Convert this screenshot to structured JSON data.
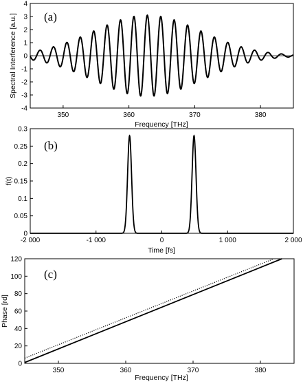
{
  "chart_data": [
    {
      "panel_label": "(a)",
      "type": "line",
      "xlabel": "Frequency [THz]",
      "ylabel": "Spectral Interference [a.u.]",
      "xlim": [
        345,
        385
      ],
      "ylim": [
        -4,
        4
      ],
      "x_ticks": [
        "350",
        "360",
        "370",
        "380"
      ],
      "y_ticks": [
        "-4",
        "-3",
        "-2",
        "-1",
        "0",
        "1",
        "2",
        "3",
        "4"
      ],
      "grid": false,
      "series": [
        {
          "description": "spectral interference fringes",
          "envelope_center": 362.8,
          "envelope_amplitude": 3.1,
          "envelope_sigma": 8.2,
          "fringe_period": 2.04,
          "x_range": [
            345,
            385
          ]
        }
      ]
    },
    {
      "panel_label": "(b)",
      "type": "line",
      "xlabel": "Time [fs]",
      "ylabel": "f(t)",
      "xlim": [
        -2000,
        2000
      ],
      "ylim": [
        0,
        0.3
      ],
      "x_ticks": [
        "-2 000",
        "-1 000",
        "0",
        "1 000",
        "2 000"
      ],
      "y_ticks": [
        "0",
        "0.05",
        "0.1",
        "0.15",
        "0.2",
        "0.25",
        "0.3"
      ],
      "grid": false,
      "series": [
        {
          "description": "two symmetric pulses",
          "peaks": [
            {
              "x": -490,
              "y": 0.28
            },
            {
              "x": 490,
              "y": 0.28
            }
          ],
          "peak_width": 30
        }
      ]
    },
    {
      "panel_label": "(c)",
      "type": "line",
      "xlabel": "Frequency [THz]",
      "ylabel": "Phase [rd]",
      "xlim": [
        345,
        385
      ],
      "ylim": [
        0,
        120
      ],
      "x_ticks": [
        "350",
        "360",
        "370",
        "380"
      ],
      "y_ticks": [
        "0",
        "20",
        "40",
        "60",
        "80",
        "100",
        "120"
      ],
      "grid": false,
      "series": [
        {
          "style": "solid",
          "x": [
            345,
            383.2
          ],
          "y": [
            1,
            120
          ]
        },
        {
          "style": "dotted",
          "x": [
            345,
            382
          ],
          "y": [
            6,
            120
          ]
        }
      ]
    }
  ]
}
